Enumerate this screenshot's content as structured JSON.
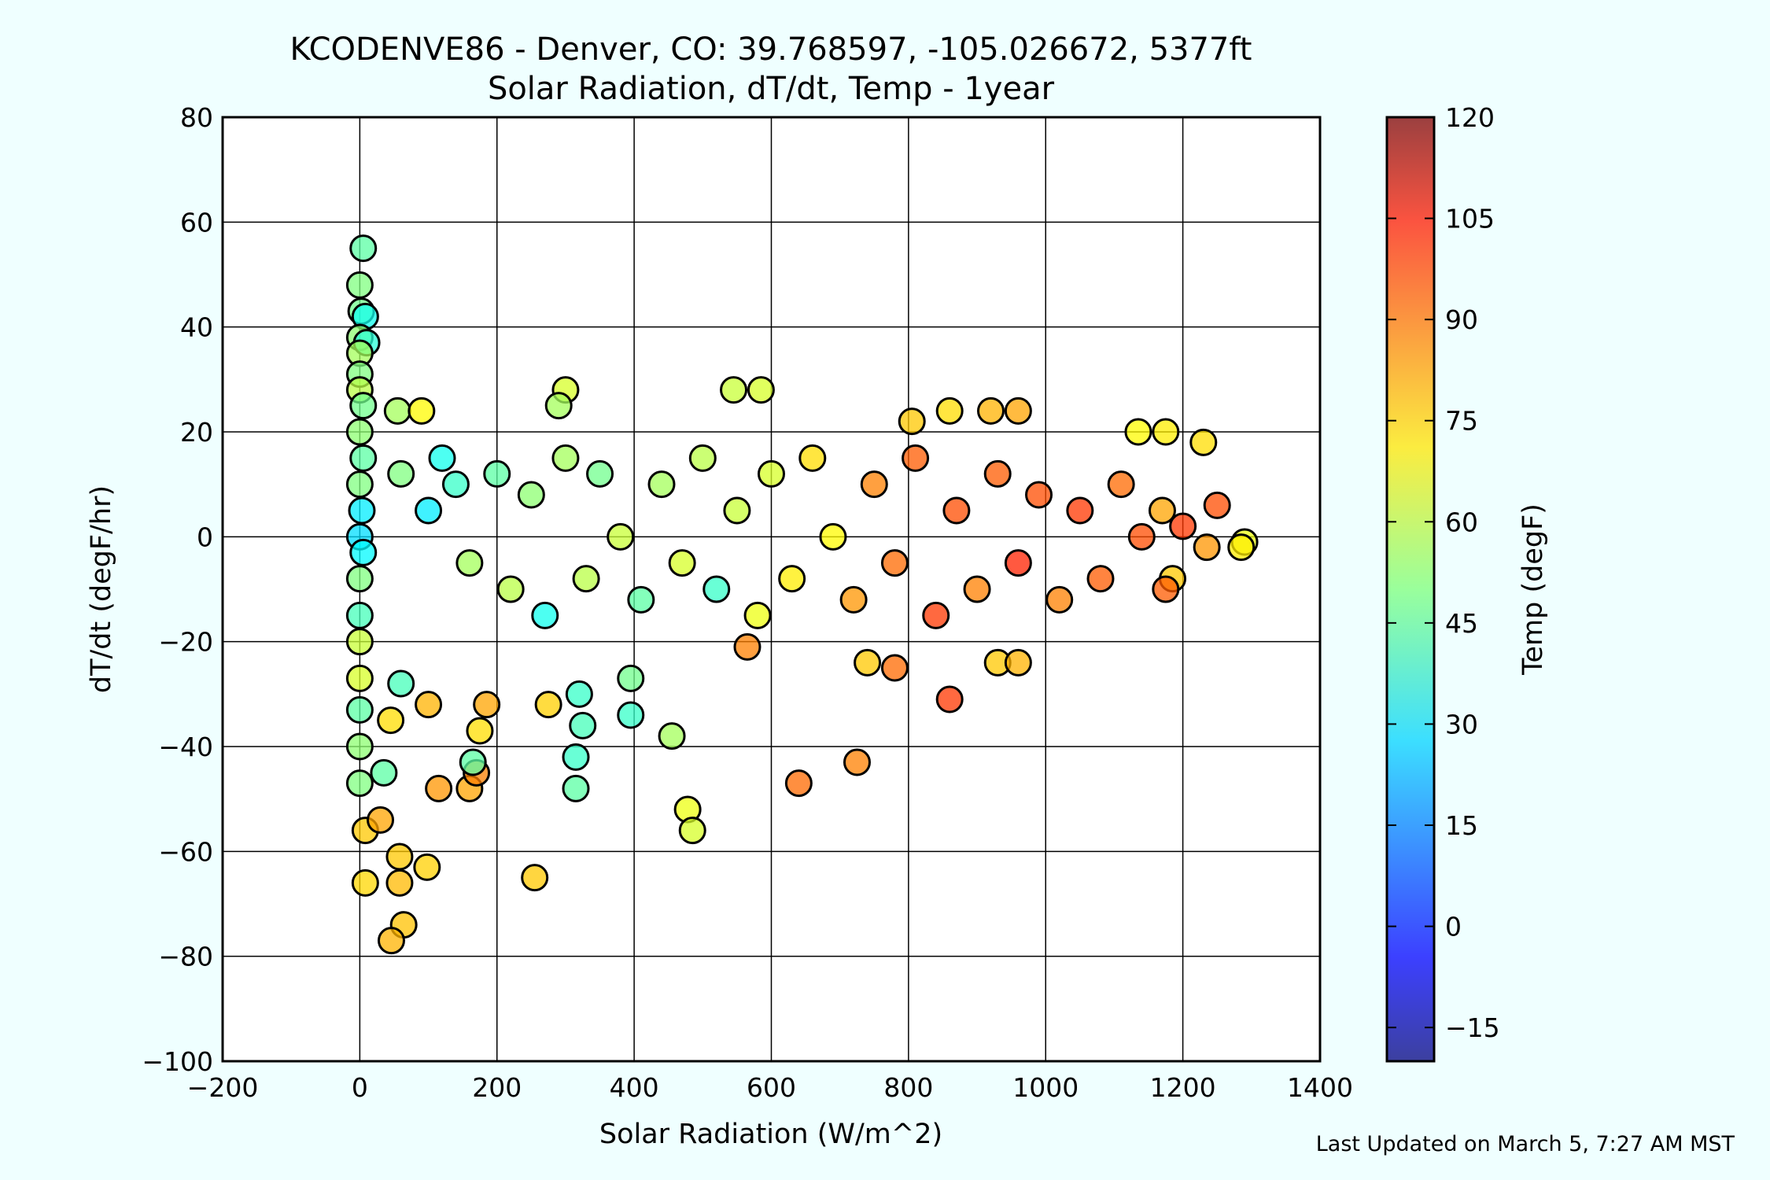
{
  "chart_data": {
    "type": "scatter",
    "title": "KCODENVE86 - Denver, CO: 39.768597, -105.026672, 5377ft",
    "subtitle": "Solar Radiation, dT/dt, Temp - 1year",
    "xlabel": "Solar Radiation (W/m^2)",
    "ylabel": "dT/dt (degF/hr)",
    "xlim": [
      -200,
      1400
    ],
    "ylim": [
      -100,
      80
    ],
    "x_ticks": [
      -200,
      0,
      200,
      400,
      600,
      800,
      1000,
      1200,
      1400
    ],
    "x_tick_labels": [
      "−200",
      "0",
      "200",
      "400",
      "600",
      "800",
      "1000",
      "1200",
      "1400"
    ],
    "y_ticks": [
      -100,
      -80,
      -60,
      -40,
      -20,
      0,
      20,
      40,
      60,
      80
    ],
    "y_tick_labels": [
      "−100",
      "−80",
      "−60",
      "−40",
      "−20",
      "0",
      "20",
      "40",
      "60",
      "80"
    ],
    "grid": true,
    "colorbar": {
      "label": "Temp (degF)",
      "range": [
        -20,
        120
      ],
      "ticks": [
        -15,
        0,
        15,
        30,
        45,
        60,
        75,
        90,
        105,
        120
      ],
      "tick_labels": [
        "−15",
        "0",
        "15",
        "30",
        "45",
        "60",
        "75",
        "90",
        "105",
        "120"
      ],
      "colormap": "jet"
    },
    "points": [
      {
        "x": 5,
        "y": 55,
        "t": 45
      },
      {
        "x": 0,
        "y": 48,
        "t": 50
      },
      {
        "x": 2,
        "y": 43,
        "t": 48
      },
      {
        "x": 8,
        "y": 42,
        "t": 35
      },
      {
        "x": 0,
        "y": 38,
        "t": 52
      },
      {
        "x": 10,
        "y": 37,
        "t": 38
      },
      {
        "x": 0,
        "y": 35,
        "t": 55
      },
      {
        "x": 0,
        "y": 31,
        "t": 50
      },
      {
        "x": 0,
        "y": 28,
        "t": 58
      },
      {
        "x": 5,
        "y": 25,
        "t": 48
      },
      {
        "x": 0,
        "y": 20,
        "t": 52
      },
      {
        "x": 5,
        "y": 15,
        "t": 45
      },
      {
        "x": 0,
        "y": 10,
        "t": 50
      },
      {
        "x": 3,
        "y": 5,
        "t": 30
      },
      {
        "x": 0,
        "y": 0,
        "t": 28
      },
      {
        "x": 5,
        "y": -3,
        "t": 32
      },
      {
        "x": 0,
        "y": -8,
        "t": 50
      },
      {
        "x": 0,
        "y": -15,
        "t": 42
      },
      {
        "x": 0,
        "y": -20,
        "t": 60
      },
      {
        "x": 0,
        "y": -27,
        "t": 62
      },
      {
        "x": 0,
        "y": -33,
        "t": 45
      },
      {
        "x": 0,
        "y": -40,
        "t": 52
      },
      {
        "x": 0,
        "y": -47,
        "t": 50
      },
      {
        "x": 35,
        "y": -45,
        "t": 45
      },
      {
        "x": 8,
        "y": -56,
        "t": 75
      },
      {
        "x": 30,
        "y": -54,
        "t": 80
      },
      {
        "x": 8,
        "y": -66,
        "t": 73
      },
      {
        "x": 58,
        "y": -61,
        "t": 75
      },
      {
        "x": 58,
        "y": -66,
        "t": 77
      },
      {
        "x": 98,
        "y": -63,
        "t": 74
      },
      {
        "x": 64,
        "y": -74,
        "t": 76
      },
      {
        "x": 46,
        "y": -77,
        "t": 78
      },
      {
        "x": 115,
        "y": -48,
        "t": 82
      },
      {
        "x": 160,
        "y": -48,
        "t": 80
      },
      {
        "x": 170,
        "y": -45,
        "t": 85
      },
      {
        "x": 165,
        "y": -43,
        "t": 45
      },
      {
        "x": 60,
        "y": -28,
        "t": 42
      },
      {
        "x": 100,
        "y": -32,
        "t": 78
      },
      {
        "x": 45,
        "y": -35,
        "t": 72
      },
      {
        "x": 175,
        "y": -37,
        "t": 72
      },
      {
        "x": 185,
        "y": -32,
        "t": 80
      },
      {
        "x": 255,
        "y": -65,
        "t": 75
      },
      {
        "x": 275,
        "y": -32,
        "t": 74
      },
      {
        "x": 315,
        "y": -42,
        "t": 40
      },
      {
        "x": 315,
        "y": -48,
        "t": 45
      },
      {
        "x": 320,
        "y": -30,
        "t": 40
      },
      {
        "x": 325,
        "y": -36,
        "t": 42
      },
      {
        "x": 395,
        "y": -27,
        "t": 48
      },
      {
        "x": 395,
        "y": -34,
        "t": 40
      },
      {
        "x": 455,
        "y": -38,
        "t": 55
      },
      {
        "x": 478,
        "y": -52,
        "t": 65
      },
      {
        "x": 485,
        "y": -56,
        "t": 62
      },
      {
        "x": 640,
        "y": -47,
        "t": 88
      },
      {
        "x": 725,
        "y": -43,
        "t": 85
      },
      {
        "x": 780,
        "y": -25,
        "t": 88
      },
      {
        "x": 860,
        "y": -31,
        "t": 95
      },
      {
        "x": 930,
        "y": -24,
        "t": 75
      },
      {
        "x": 960,
        "y": -24,
        "t": 78
      },
      {
        "x": 740,
        "y": -24,
        "t": 75
      },
      {
        "x": 565,
        "y": -21,
        "t": 85
      },
      {
        "x": 55,
        "y": 24,
        "t": 55
      },
      {
        "x": 90,
        "y": 24,
        "t": 68
      },
      {
        "x": 300,
        "y": 28,
        "t": 62
      },
      {
        "x": 290,
        "y": 25,
        "t": 55
      },
      {
        "x": 545,
        "y": 28,
        "t": 60
      },
      {
        "x": 585,
        "y": 28,
        "t": 62
      },
      {
        "x": 805,
        "y": 22,
        "t": 75
      },
      {
        "x": 860,
        "y": 24,
        "t": 72
      },
      {
        "x": 920,
        "y": 24,
        "t": 78
      },
      {
        "x": 960,
        "y": 24,
        "t": 80
      },
      {
        "x": 1135,
        "y": 20,
        "t": 68
      },
      {
        "x": 1175,
        "y": 20,
        "t": 70
      },
      {
        "x": 1230,
        "y": 18,
        "t": 72
      },
      {
        "x": 1250,
        "y": 6,
        "t": 92
      },
      {
        "x": 1290,
        "y": -1,
        "t": 65
      },
      {
        "x": 1285,
        "y": -2,
        "t": 70
      },
      {
        "x": 1235,
        "y": -2,
        "t": 82
      },
      {
        "x": 1185,
        "y": -8,
        "t": 75
      },
      {
        "x": 1175,
        "y": -10,
        "t": 90
      },
      {
        "x": 60,
        "y": 12,
        "t": 50
      },
      {
        "x": 120,
        "y": 15,
        "t": 35
      },
      {
        "x": 140,
        "y": 10,
        "t": 40
      },
      {
        "x": 100,
        "y": 5,
        "t": 30
      },
      {
        "x": 160,
        "y": -5,
        "t": 55
      },
      {
        "x": 200,
        "y": 12,
        "t": 45
      },
      {
        "x": 220,
        "y": -10,
        "t": 58
      },
      {
        "x": 250,
        "y": 8,
        "t": 52
      },
      {
        "x": 270,
        "y": -15,
        "t": 35
      },
      {
        "x": 300,
        "y": 15,
        "t": 55
      },
      {
        "x": 330,
        "y": -8,
        "t": 58
      },
      {
        "x": 350,
        "y": 12,
        "t": 48
      },
      {
        "x": 380,
        "y": 0,
        "t": 60
      },
      {
        "x": 410,
        "y": -12,
        "t": 45
      },
      {
        "x": 440,
        "y": 10,
        "t": 55
      },
      {
        "x": 470,
        "y": -5,
        "t": 62
      },
      {
        "x": 500,
        "y": 15,
        "t": 58
      },
      {
        "x": 520,
        "y": -10,
        "t": 40
      },
      {
        "x": 550,
        "y": 5,
        "t": 60
      },
      {
        "x": 580,
        "y": -15,
        "t": 65
      },
      {
        "x": 600,
        "y": 12,
        "t": 62
      },
      {
        "x": 630,
        "y": -8,
        "t": 70
      },
      {
        "x": 660,
        "y": 15,
        "t": 72
      },
      {
        "x": 690,
        "y": 0,
        "t": 68
      },
      {
        "x": 720,
        "y": -12,
        "t": 82
      },
      {
        "x": 750,
        "y": 10,
        "t": 85
      },
      {
        "x": 780,
        "y": -5,
        "t": 88
      },
      {
        "x": 810,
        "y": 15,
        "t": 90
      },
      {
        "x": 840,
        "y": -15,
        "t": 95
      },
      {
        "x": 870,
        "y": 5,
        "t": 92
      },
      {
        "x": 900,
        "y": -10,
        "t": 85
      },
      {
        "x": 930,
        "y": 12,
        "t": 90
      },
      {
        "x": 960,
        "y": -5,
        "t": 98
      },
      {
        "x": 990,
        "y": 8,
        "t": 92
      },
      {
        "x": 1020,
        "y": -12,
        "t": 85
      },
      {
        "x": 1050,
        "y": 5,
        "t": 95
      },
      {
        "x": 1080,
        "y": -8,
        "t": 90
      },
      {
        "x": 1110,
        "y": 10,
        "t": 88
      },
      {
        "x": 1140,
        "y": 0,
        "t": 92
      },
      {
        "x": 1170,
        "y": 5,
        "t": 80
      },
      {
        "x": 1200,
        "y": 2,
        "t": 95
      }
    ]
  },
  "footer": {
    "last_updated": "Last Updated on March 5, 7:27 AM MST"
  }
}
